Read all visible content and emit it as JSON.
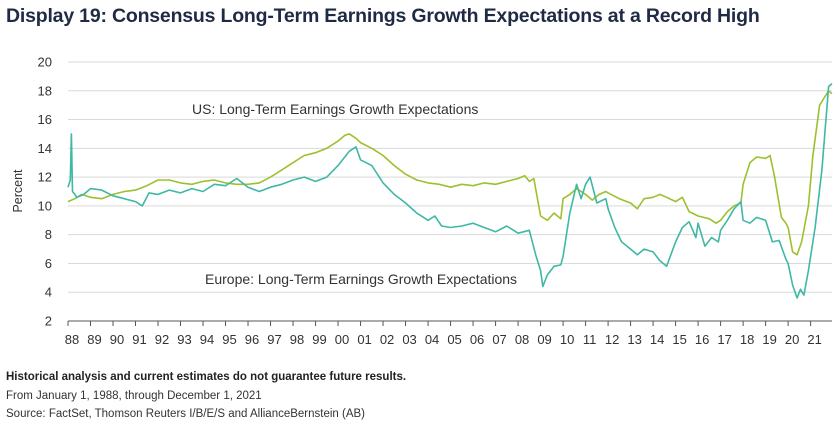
{
  "title": "Display 19: Consensus Long-Term Earnings Growth Expectations at a Record High",
  "notes": {
    "disclaimer": "Historical analysis and current estimates do not guarantee future results.",
    "period": "From January 1, 1988, through December 1, 2021",
    "source": "Source: FactSet, Thomson Reuters I/B/E/S and AllianceBernstein (AB)"
  },
  "chart_data": {
    "type": "line",
    "ylabel": "Percent",
    "xlabel": "",
    "ylim": [
      2,
      20
    ],
    "yticks": [
      2,
      4,
      6,
      8,
      10,
      12,
      14,
      16,
      18,
      20
    ],
    "xlim": [
      1988,
      2021.95
    ],
    "xtick_labels": [
      "88",
      "89",
      "90",
      "91",
      "92",
      "93",
      "94",
      "95",
      "96",
      "97",
      "98",
      "99",
      "00",
      "01",
      "02",
      "03",
      "04",
      "05",
      "06",
      "07",
      "08",
      "09",
      "10",
      "11",
      "12",
      "13",
      "14",
      "15",
      "16",
      "17",
      "18",
      "19",
      "20",
      "21"
    ],
    "grid": "horizontal",
    "colors": {
      "us": "#9dc02e",
      "europe": "#3fb8a6",
      "grid": "#d9d9d9",
      "axis": "#555555"
    },
    "series": [
      {
        "name": "US: Long-Term Earnings Growth Expectations",
        "points": [
          [
            1988.0,
            10.3
          ],
          [
            1988.3,
            10.5
          ],
          [
            1988.6,
            10.8
          ],
          [
            1989.0,
            10.6
          ],
          [
            1989.5,
            10.5
          ],
          [
            1990.0,
            10.8
          ],
          [
            1990.5,
            11.0
          ],
          [
            1991.0,
            11.1
          ],
          [
            1991.5,
            11.4
          ],
          [
            1992.0,
            11.8
          ],
          [
            1992.5,
            11.8
          ],
          [
            1993.0,
            11.6
          ],
          [
            1993.5,
            11.5
          ],
          [
            1994.0,
            11.7
          ],
          [
            1994.5,
            11.8
          ],
          [
            1995.0,
            11.6
          ],
          [
            1995.5,
            11.5
          ],
          [
            1996.0,
            11.5
          ],
          [
            1996.5,
            11.6
          ],
          [
            1997.0,
            12.0
          ],
          [
            1997.5,
            12.5
          ],
          [
            1998.0,
            13.0
          ],
          [
            1998.5,
            13.5
          ],
          [
            1999.0,
            13.7
          ],
          [
            1999.5,
            14.0
          ],
          [
            2000.0,
            14.5
          ],
          [
            2000.3,
            14.9
          ],
          [
            2000.5,
            15.0
          ],
          [
            2000.8,
            14.7
          ],
          [
            2001.0,
            14.4
          ],
          [
            2001.5,
            14.0
          ],
          [
            2002.0,
            13.5
          ],
          [
            2002.5,
            12.8
          ],
          [
            2003.0,
            12.2
          ],
          [
            2003.5,
            11.8
          ],
          [
            2004.0,
            11.6
          ],
          [
            2004.5,
            11.5
          ],
          [
            2005.0,
            11.3
          ],
          [
            2005.5,
            11.5
          ],
          [
            2006.0,
            11.4
          ],
          [
            2006.5,
            11.6
          ],
          [
            2007.0,
            11.5
          ],
          [
            2007.5,
            11.7
          ],
          [
            2008.0,
            11.9
          ],
          [
            2008.3,
            12.1
          ],
          [
            2008.5,
            11.7
          ],
          [
            2008.7,
            11.9
          ],
          [
            2009.0,
            9.3
          ],
          [
            2009.3,
            9.0
          ],
          [
            2009.6,
            9.5
          ],
          [
            2009.9,
            9.1
          ],
          [
            2010.0,
            10.5
          ],
          [
            2010.3,
            10.8
          ],
          [
            2010.6,
            11.2
          ],
          [
            2011.0,
            10.8
          ],
          [
            2011.3,
            10.4
          ],
          [
            2011.6,
            10.8
          ],
          [
            2011.9,
            11.0
          ],
          [
            2012.0,
            10.9
          ],
          [
            2012.5,
            10.5
          ],
          [
            2013.0,
            10.2
          ],
          [
            2013.3,
            9.8
          ],
          [
            2013.6,
            10.5
          ],
          [
            2014.0,
            10.6
          ],
          [
            2014.3,
            10.8
          ],
          [
            2014.6,
            10.6
          ],
          [
            2015.0,
            10.3
          ],
          [
            2015.3,
            10.6
          ],
          [
            2015.6,
            9.6
          ],
          [
            2016.0,
            9.3
          ],
          [
            2016.5,
            9.1
          ],
          [
            2016.8,
            8.8
          ],
          [
            2017.0,
            9.0
          ],
          [
            2017.3,
            9.6
          ],
          [
            2017.6,
            10.0
          ],
          [
            2017.9,
            10.2
          ],
          [
            2018.0,
            11.5
          ],
          [
            2018.3,
            13.0
          ],
          [
            2018.6,
            13.4
          ],
          [
            2019.0,
            13.3
          ],
          [
            2019.2,
            13.5
          ],
          [
            2019.4,
            12.0
          ],
          [
            2019.7,
            9.2
          ],
          [
            2019.9,
            8.8
          ],
          [
            2020.0,
            8.5
          ],
          [
            2020.2,
            6.8
          ],
          [
            2020.4,
            6.6
          ],
          [
            2020.6,
            7.5
          ],
          [
            2020.9,
            10.0
          ],
          [
            2021.1,
            13.5
          ],
          [
            2021.4,
            17.0
          ],
          [
            2021.6,
            17.5
          ],
          [
            2021.8,
            18.0
          ],
          [
            2021.95,
            17.8
          ]
        ]
      },
      {
        "name": "Europe: Long-Term Earnings Growth Expectations",
        "points": [
          [
            1988.0,
            11.3
          ],
          [
            1988.1,
            11.8
          ],
          [
            1988.15,
            15.0
          ],
          [
            1988.2,
            11.0
          ],
          [
            1988.4,
            10.6
          ],
          [
            1988.7,
            10.8
          ],
          [
            1989.0,
            11.2
          ],
          [
            1989.5,
            11.1
          ],
          [
            1990.0,
            10.7
          ],
          [
            1990.5,
            10.5
          ],
          [
            1991.0,
            10.3
          ],
          [
            1991.3,
            10.0
          ],
          [
            1991.6,
            10.9
          ],
          [
            1992.0,
            10.8
          ],
          [
            1992.5,
            11.1
          ],
          [
            1993.0,
            10.9
          ],
          [
            1993.5,
            11.2
          ],
          [
            1994.0,
            11.0
          ],
          [
            1994.5,
            11.5
          ],
          [
            1995.0,
            11.4
          ],
          [
            1995.5,
            11.9
          ],
          [
            1996.0,
            11.3
          ],
          [
            1996.5,
            11.0
          ],
          [
            1997.0,
            11.3
          ],
          [
            1997.5,
            11.5
          ],
          [
            1998.0,
            11.8
          ],
          [
            1998.5,
            12.0
          ],
          [
            1999.0,
            11.7
          ],
          [
            1999.5,
            12.0
          ],
          [
            2000.0,
            12.8
          ],
          [
            2000.5,
            13.8
          ],
          [
            2000.8,
            14.1
          ],
          [
            2001.0,
            13.2
          ],
          [
            2001.5,
            12.8
          ],
          [
            2002.0,
            11.6
          ],
          [
            2002.5,
            10.8
          ],
          [
            2003.0,
            10.2
          ],
          [
            2003.5,
            9.5
          ],
          [
            2004.0,
            9.0
          ],
          [
            2004.3,
            9.3
          ],
          [
            2004.6,
            8.6
          ],
          [
            2005.0,
            8.5
          ],
          [
            2005.5,
            8.6
          ],
          [
            2006.0,
            8.8
          ],
          [
            2006.5,
            8.5
          ],
          [
            2007.0,
            8.2
          ],
          [
            2007.5,
            8.6
          ],
          [
            2008.0,
            8.1
          ],
          [
            2008.5,
            8.3
          ],
          [
            2008.8,
            6.5
          ],
          [
            2009.0,
            5.5
          ],
          [
            2009.1,
            4.4
          ],
          [
            2009.3,
            5.2
          ],
          [
            2009.6,
            5.8
          ],
          [
            2009.9,
            5.9
          ],
          [
            2010.0,
            6.5
          ],
          [
            2010.3,
            9.5
          ],
          [
            2010.6,
            11.5
          ],
          [
            2010.8,
            10.5
          ],
          [
            2011.0,
            11.5
          ],
          [
            2011.2,
            12.0
          ],
          [
            2011.5,
            10.2
          ],
          [
            2011.9,
            10.5
          ],
          [
            2012.0,
            9.8
          ],
          [
            2012.3,
            8.5
          ],
          [
            2012.6,
            7.5
          ],
          [
            2013.0,
            7.0
          ],
          [
            2013.3,
            6.6
          ],
          [
            2013.6,
            7.0
          ],
          [
            2014.0,
            6.8
          ],
          [
            2014.3,
            6.2
          ],
          [
            2014.6,
            5.8
          ],
          [
            2015.0,
            7.5
          ],
          [
            2015.3,
            8.5
          ],
          [
            2015.6,
            8.9
          ],
          [
            2015.9,
            7.8
          ],
          [
            2016.0,
            8.8
          ],
          [
            2016.3,
            7.2
          ],
          [
            2016.6,
            7.8
          ],
          [
            2016.9,
            7.5
          ],
          [
            2017.0,
            8.3
          ],
          [
            2017.3,
            9.0
          ],
          [
            2017.6,
            9.8
          ],
          [
            2017.9,
            10.3
          ],
          [
            2018.0,
            9.0
          ],
          [
            2018.3,
            8.8
          ],
          [
            2018.6,
            9.2
          ],
          [
            2019.0,
            9.0
          ],
          [
            2019.3,
            7.5
          ],
          [
            2019.6,
            7.6
          ],
          [
            2019.9,
            6.3
          ],
          [
            2020.0,
            6.0
          ],
          [
            2020.2,
            4.5
          ],
          [
            2020.4,
            3.6
          ],
          [
            2020.55,
            4.2
          ],
          [
            2020.7,
            3.8
          ],
          [
            2020.9,
            5.5
          ],
          [
            2021.2,
            8.5
          ],
          [
            2021.5,
            12.5
          ],
          [
            2021.8,
            18.3
          ],
          [
            2021.95,
            18.5
          ]
        ]
      }
    ]
  }
}
